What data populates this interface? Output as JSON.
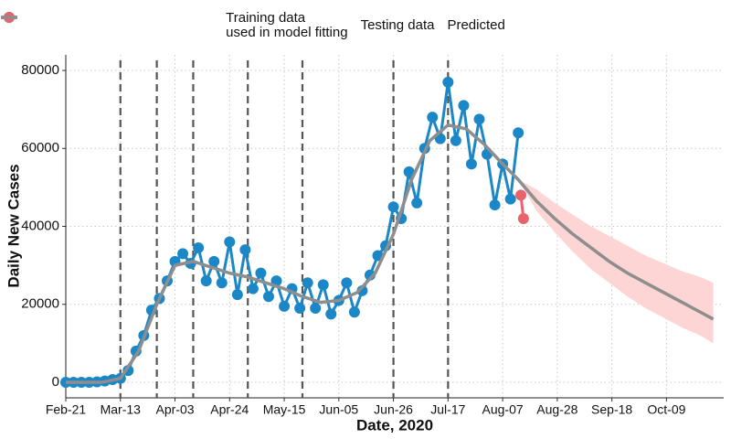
{
  "chart_data": {
    "type": "line",
    "x_label": "Date, 2020",
    "y_label": "Daily New Cases",
    "xlim": [
      "Feb-21",
      "Oct-31"
    ],
    "xticks": [
      "Feb-21",
      "Mar-13",
      "Apr-03",
      "Apr-24",
      "May-15",
      "Jun-05",
      "Jun-26",
      "Jul-17",
      "Aug-07",
      "Aug-28",
      "Sep-18",
      "Oct-09"
    ],
    "ylim": [
      -4000,
      84000
    ],
    "yticks": [
      0,
      20000,
      40000,
      60000,
      80000
    ],
    "grid": true,
    "legend_position": "top",
    "vlines": [
      "Mar-13",
      "Mar-27",
      "Apr-10",
      "May-01",
      "May-22",
      "Jun-26",
      "Jul-17"
    ],
    "vline_color": "#555555",
    "interval": {
      "color": "#fdd5d5",
      "x": [
        "Aug-13",
        "Aug-20",
        "Aug-27",
        "Sep-03",
        "Sep-10",
        "Sep-17",
        "Sep-24",
        "Oct-01",
        "Oct-08",
        "Oct-15",
        "Oct-22",
        "Oct-27"
      ],
      "lower": [
        52000,
        44000,
        38500,
        33500,
        29000,
        25500,
        22000,
        19000,
        16500,
        14000,
        12000,
        10000
      ],
      "upper": [
        52000,
        49500,
        46000,
        43000,
        40000,
        37500,
        35000,
        32500,
        30500,
        28500,
        27000,
        25500
      ]
    },
    "series": [
      {
        "name": "Training data\nused in model fitting",
        "color": "#1b87c6",
        "markers": true,
        "x": [
          "Feb-21",
          "Feb-24",
          "Feb-27",
          "Mar-01",
          "Mar-04",
          "Mar-07",
          "Mar-10",
          "Mar-13",
          "Mar-16",
          "Mar-19",
          "Mar-22",
          "Mar-25",
          "Mar-28",
          "Mar-31",
          "Apr-03",
          "Apr-06",
          "Apr-09",
          "Apr-12",
          "Apr-15",
          "Apr-18",
          "Apr-21",
          "Apr-24",
          "Apr-27",
          "Apr-30",
          "May-03",
          "May-06",
          "May-09",
          "May-12",
          "May-15",
          "May-18",
          "May-21",
          "May-24",
          "May-27",
          "May-30",
          "Jun-02",
          "Jun-05",
          "Jun-08",
          "Jun-11",
          "Jun-14",
          "Jun-17",
          "Jun-20",
          "Jun-23",
          "Jun-26",
          "Jun-29",
          "Jul-02",
          "Jul-05",
          "Jul-08",
          "Jul-11",
          "Jul-14",
          "Jul-17",
          "Jul-20",
          "Jul-23",
          "Jul-26",
          "Jul-29",
          "Aug-01",
          "Aug-04",
          "Aug-07",
          "Aug-10",
          "Aug-13"
        ],
        "values": [
          0,
          0,
          0,
          0,
          100,
          300,
          700,
          1000,
          3000,
          8000,
          12000,
          18500,
          21500,
          26000,
          31000,
          33000,
          30500,
          34500,
          26000,
          31000,
          25500,
          36000,
          22500,
          34000,
          24000,
          28000,
          22000,
          26000,
          19500,
          24000,
          19000,
          25500,
          19000,
          25000,
          17500,
          21000,
          25500,
          18000,
          23500,
          27500,
          32500,
          35000,
          45000,
          42000,
          54000,
          46000,
          60000,
          68000,
          62500,
          77000,
          62000,
          71000,
          56000,
          67500,
          58500,
          45500,
          56000,
          47000,
          64000
        ]
      },
      {
        "name": "Testing data",
        "color": "#e8636b",
        "markers": true,
        "x": [
          "Aug-14",
          "Aug-15"
        ],
        "values": [
          48000,
          42000
        ]
      },
      {
        "name": "Predicted",
        "color": "#8e8e8e",
        "markers": false,
        "x": [
          "Feb-21",
          "Mar-06",
          "Mar-13",
          "Mar-20",
          "Mar-27",
          "Apr-03",
          "Apr-10",
          "Apr-17",
          "Apr-24",
          "May-01",
          "May-08",
          "May-15",
          "May-22",
          "May-29",
          "Jun-05",
          "Jun-12",
          "Jun-19",
          "Jun-26",
          "Jul-03",
          "Jul-10",
          "Jul-17",
          "Jul-24",
          "Jul-31",
          "Aug-07",
          "Aug-13",
          "Aug-20",
          "Aug-27",
          "Sep-03",
          "Sep-10",
          "Sep-17",
          "Sep-24",
          "Oct-01",
          "Oct-08",
          "Oct-15",
          "Oct-22",
          "Oct-27"
        ],
        "values": [
          0,
          0,
          1000,
          8000,
          20000,
          30000,
          31000,
          29500,
          28000,
          27000,
          25500,
          24000,
          22000,
          20500,
          21000,
          23000,
          28000,
          38000,
          52000,
          62000,
          66000,
          65000,
          61000,
          56000,
          52000,
          46500,
          42000,
          38000,
          34500,
          31000,
          28000,
          25500,
          23000,
          20500,
          18000,
          16200
        ]
      }
    ]
  }
}
